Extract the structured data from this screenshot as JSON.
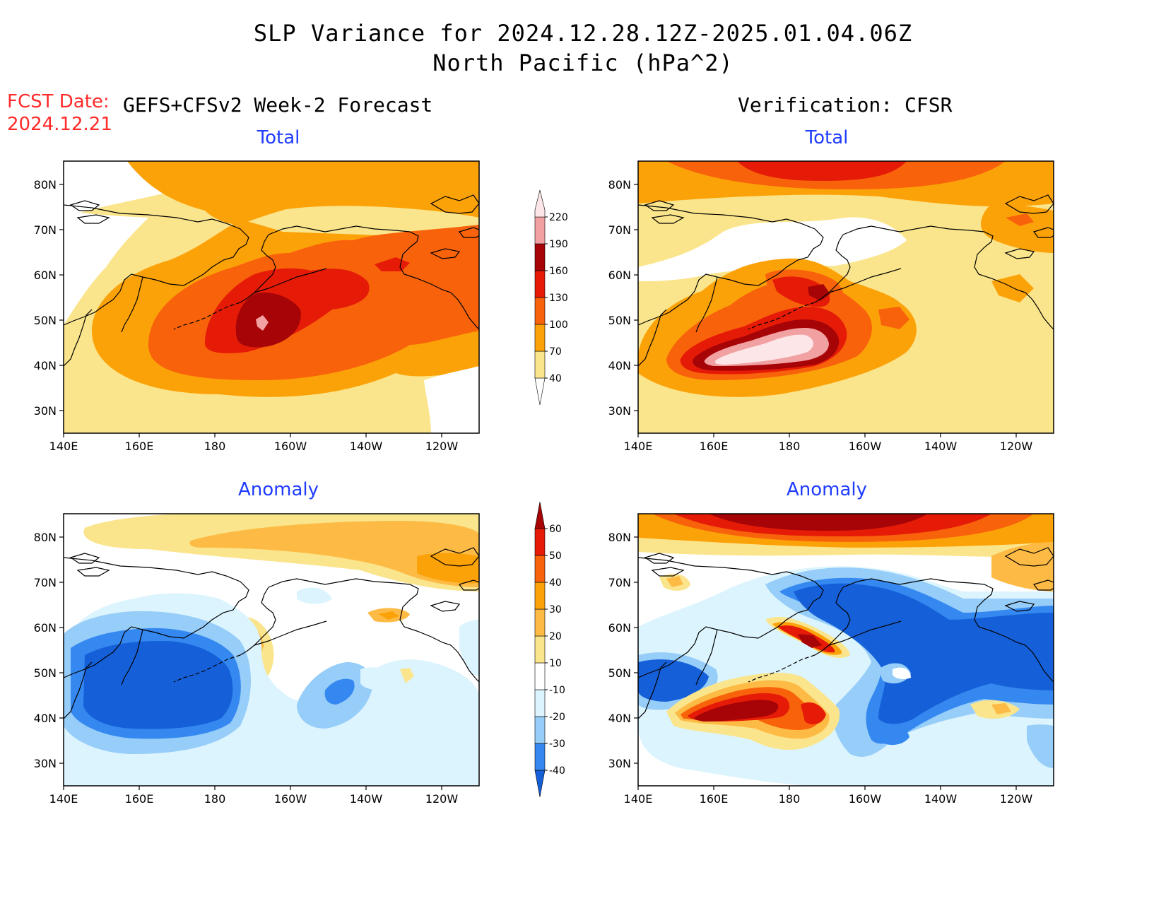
{
  "title_line1": "SLP Variance for 2024.12.28.12Z-2025.01.04.06Z",
  "title_line2": "North Pacific (hPa^2)",
  "fcst_label": "FCST Date:",
  "fcst_date": "2024.12.21",
  "left_header": "GEFS+CFSv2 Week-2 Forecast",
  "right_header": "Verification: CFSR",
  "panels": {
    "top_left": {
      "title": "Total"
    },
    "top_right": {
      "title": "Total"
    },
    "bottom_left": {
      "title": "Anomaly"
    },
    "bottom_right": {
      "title": "Anomaly"
    }
  },
  "axes": {
    "lat_labels": [
      "80N",
      "70N",
      "60N",
      "50N",
      "40N",
      "30N"
    ],
    "lon_labels": [
      "140E",
      "160E",
      "180",
      "160W",
      "140W",
      "120W"
    ]
  },
  "colorbars": {
    "total": {
      "levels": [
        "40",
        "70",
        "100",
        "130",
        "160",
        "190",
        "220"
      ],
      "colors": [
        "#fbe58c",
        "#fca209",
        "#f8620b",
        "#e51b08",
        "#a70407",
        "#f2a1a3",
        "#fde6e7"
      ]
    },
    "anomaly": {
      "levels": [
        "-40",
        "-30",
        "-20",
        "-10",
        "10",
        "20",
        "30",
        "40",
        "50",
        "60"
      ],
      "colors": [
        "#1560d9",
        "#3488f0",
        "#96cdf9",
        "#dcf4fe",
        "#ffffff",
        "#fbe58c",
        "#fdbb45",
        "#fca209",
        "#f8620b",
        "#e51b08",
        "#a70407"
      ]
    }
  },
  "chart_data": [
    {
      "type": "heatmap",
      "panel": "top_left",
      "title": "Total",
      "max_feature": "center near 50N 167W",
      "peak_value": 220
    },
    {
      "type": "heatmap",
      "panel": "top_right",
      "title": "Total",
      "max_feature": "band near 45N 165E-170W",
      "peak_value": 220
    },
    {
      "type": "heatmap",
      "panel": "bottom_left",
      "title": "Anomaly",
      "min_feature": "center near 45N 160E",
      "min_value": -40
    },
    {
      "type": "heatmap",
      "panel": "bottom_right",
      "title": "Anomaly",
      "max_feature": "near 43N 170E",
      "max_value": 60
    }
  ]
}
